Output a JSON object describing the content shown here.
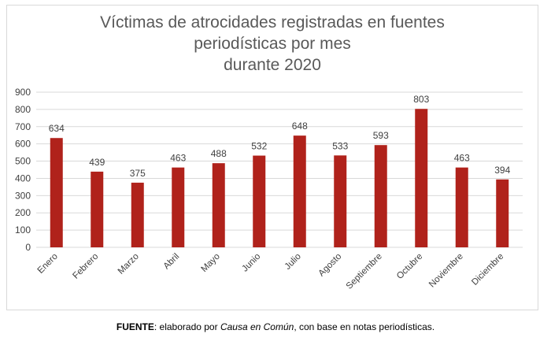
{
  "chart_data": {
    "type": "bar",
    "title_lines": [
      "Víctimas de atrocidades registradas en fuentes",
      "periodísticas por mes",
      "durante 2020"
    ],
    "categories": [
      "Enero",
      "Febrero",
      "Marzo",
      "Abril",
      "Mayo",
      "Junio",
      "Julio",
      "Agosto",
      "Septiembre",
      "Octubre",
      "Noviembre",
      "Diciembre"
    ],
    "values": [
      634,
      439,
      375,
      463,
      488,
      532,
      648,
      533,
      593,
      803,
      463,
      394
    ],
    "yticks": [
      0,
      100,
      200,
      300,
      400,
      500,
      600,
      700,
      800,
      900
    ],
    "ylim": [
      0,
      900
    ],
    "xlabel": "",
    "ylabel": "",
    "grid": true,
    "bar_color": "#b0221b",
    "grid_color": "#d9d9d9"
  },
  "footer": {
    "label": "FUENTE",
    "text_before": ": elaborado por ",
    "italic": "Causa en Común",
    "text_after": ", con base en notas periodísticas."
  }
}
